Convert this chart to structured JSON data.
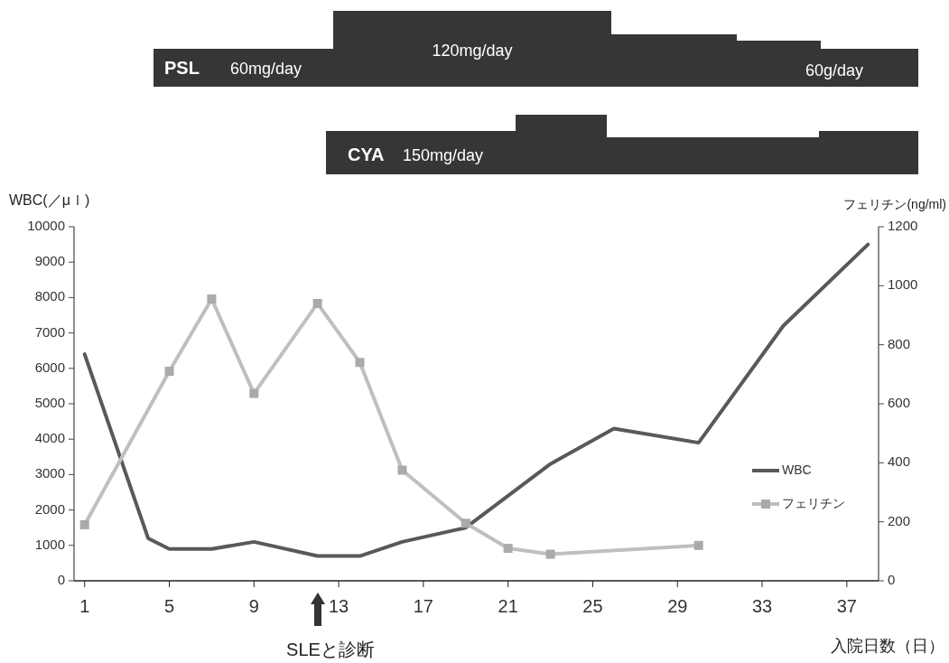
{
  "chart_data": [
    {
      "type": "other",
      "annotations": [
        "PSL",
        "60mg/day",
        "120mg/day",
        "60g/day",
        "CYA",
        "150mg/day"
      ]
    },
    {
      "type": "line",
      "xlabel": "入院日数（日）",
      "ylabel": "WBC(／μｌ)",
      "y2label": "フェリチン(ng/ml)",
      "xlim": [
        0.5,
        38.5
      ],
      "xticks": [
        1,
        5,
        9,
        13,
        17,
        21,
        25,
        29,
        33,
        37
      ],
      "ylim": [
        0,
        10000
      ],
      "yticks": [
        0,
        1000,
        2000,
        3000,
        4000,
        5000,
        6000,
        7000,
        8000,
        9000,
        10000
      ],
      "y2lim": [
        0,
        1200
      ],
      "y2ticks": [
        0,
        200,
        400,
        600,
        800,
        1000,
        1200
      ],
      "grid": false,
      "legend": "right",
      "series": [
        {
          "name": "WBC",
          "color": "#595959",
          "marker": "none",
          "x": [
            1,
            4,
            5,
            7,
            9,
            12,
            14,
            16,
            19,
            23,
            26,
            30,
            34,
            38
          ],
          "values": [
            6400,
            1200,
            900,
            900,
            1100,
            700,
            700,
            1100,
            1500,
            3300,
            4300,
            3900,
            7200,
            9500
          ]
        },
        {
          "name": "フェリチン",
          "color": "#bfbfbf",
          "marker": "square",
          "axis": "y2",
          "x": [
            1,
            5,
            7,
            9,
            12,
            14,
            16,
            19,
            21,
            23,
            30
          ],
          "values": [
            190,
            710,
            955,
            635,
            940,
            740,
            375,
            195,
            110,
            90,
            120
          ]
        }
      ],
      "annotations": [
        "SLEと診断"
      ]
    }
  ]
}
